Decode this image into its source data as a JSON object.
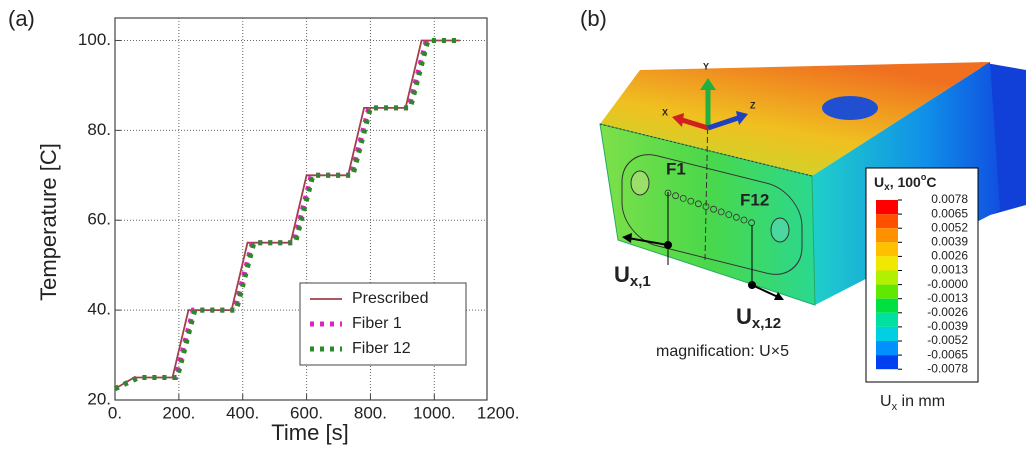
{
  "chart_data": {
    "type": "line",
    "panel_label": "(a)",
    "xlabel": "Time [s]",
    "ylabel": "Temperature [C]",
    "xlim": [
      0,
      1165
    ],
    "ylim": [
      20,
      105
    ],
    "xticks": [
      {
        "value": 0,
        "label": "0."
      },
      {
        "value": 200,
        "label": "200."
      },
      {
        "value": 400,
        "label": "400."
      },
      {
        "value": 600,
        "label": "600."
      },
      {
        "value": 800,
        "label": "800."
      },
      {
        "value": 1000,
        "label": "1000."
      },
      {
        "value": 1200,
        "label": "1200."
      }
    ],
    "yticks": [
      {
        "value": 20,
        "label": "20."
      },
      {
        "value": 40,
        "label": "40."
      },
      {
        "value": 60,
        "label": "60."
      },
      {
        "value": 80,
        "label": "80."
      },
      {
        "value": 100,
        "label": "100."
      }
    ],
    "grid": true,
    "legend": "lower right",
    "series": [
      {
        "name": "Prescribed",
        "color": "#a0404a",
        "style": "solid",
        "x": [
          0,
          60,
          180,
          230,
          365,
          415,
          550,
          600,
          730,
          780,
          910,
          960,
          1080
        ],
        "values": [
          22.5,
          25,
          25,
          40,
          40,
          55,
          55,
          70,
          70,
          85,
          85,
          100,
          100
        ]
      },
      {
        "name": "Fiber 1",
        "color": "#e020c0",
        "style": "dotted",
        "x": [
          0,
          70,
          190,
          245,
          375,
          430,
          560,
          615,
          740,
          795,
          920,
          975,
          1080
        ],
        "values": [
          22.5,
          25,
          25,
          40,
          40,
          55,
          55,
          70,
          70,
          85,
          85,
          100,
          100
        ]
      },
      {
        "name": "Fiber 12",
        "color": "#2a8a2a",
        "style": "dotted",
        "x": [
          0,
          75,
          195,
          250,
          380,
          435,
          565,
          620,
          745,
          800,
          925,
          980,
          1080
        ],
        "values": [
          22.5,
          25,
          25,
          40,
          40,
          55,
          55,
          70,
          70,
          85,
          85,
          100,
          100
        ]
      }
    ]
  },
  "figure_b": {
    "panel_label": "(b)",
    "axes": {
      "y": "Y",
      "x": "X",
      "z": "Z"
    },
    "fibers": {
      "first": "F1",
      "last": "F12"
    },
    "disp1": {
      "main": "U",
      "sub": "x,1"
    },
    "disp12": {
      "main": "U",
      "sub": "x,12"
    },
    "magnification": "magnification: U×5",
    "colorbar": {
      "title": {
        "main": "U",
        "sub": "x",
        "rest": ", 100",
        "sup": "o",
        "end": "C"
      },
      "labels": [
        "0.0078",
        "0.0065",
        "0.0052",
        "0.0039",
        "0.0026",
        "0.0013",
        "-0.0000",
        "-0.0013",
        "-0.0026",
        "-0.0039",
        "-0.0052",
        "-0.0065",
        "-0.0078"
      ],
      "unit": {
        "main": "U",
        "sub": "x",
        "rest": " in mm"
      }
    }
  }
}
